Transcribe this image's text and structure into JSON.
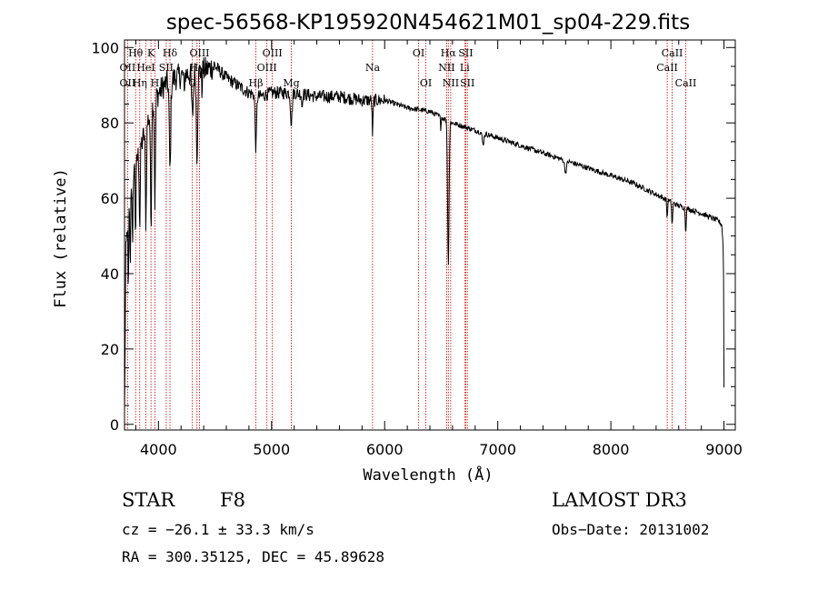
{
  "chart_data": {
    "type": "line",
    "title": "spec-56568-KP195920N454621M01_sp04-229.fits",
    "xlabel": "Wavelength (Å)",
    "ylabel": "Flux (relative)",
    "xlim": [
      3700,
      9100
    ],
    "ylim": [
      -1.5,
      102
    ],
    "xticks": [
      4000,
      5000,
      6000,
      7000,
      8000,
      9000
    ],
    "yticks": [
      0,
      20,
      40,
      60,
      80,
      100
    ],
    "continuum": [
      [
        3700,
        2
      ],
      [
        3712,
        45
      ],
      [
        3740,
        62
      ],
      [
        3780,
        68
      ],
      [
        3830,
        72
      ],
      [
        3900,
        80
      ],
      [
        3960,
        86
      ],
      [
        4050,
        90
      ],
      [
        4150,
        92
      ],
      [
        4250,
        93
      ],
      [
        4400,
        94
      ],
      [
        4500,
        95
      ],
      [
        4600,
        92
      ],
      [
        4700,
        90
      ],
      [
        4800,
        88
      ],
      [
        4900,
        87
      ],
      [
        5000,
        88
      ],
      [
        5200,
        88
      ],
      [
        5400,
        87
      ],
      [
        5600,
        87
      ],
      [
        5800,
        86
      ],
      [
        5900,
        86
      ],
      [
        6000,
        86
      ],
      [
        6200,
        84
      ],
      [
        6400,
        83
      ],
      [
        6600,
        80
      ],
      [
        6800,
        78
      ],
      [
        7000,
        76
      ],
      [
        7200,
        74
      ],
      [
        7400,
        72
      ],
      [
        7600,
        70
      ],
      [
        7800,
        68
      ],
      [
        8000,
        66
      ],
      [
        8200,
        64
      ],
      [
        8400,
        61
      ],
      [
        8600,
        58
      ],
      [
        8800,
        56
      ],
      [
        8950,
        54
      ],
      [
        8980,
        53
      ],
      [
        8995,
        46
      ],
      [
        9000,
        10
      ]
    ],
    "absorption_features": [
      {
        "x": 3734,
        "depth": 25,
        "width": 5
      },
      {
        "x": 3750,
        "depth": 22,
        "width": 5
      },
      {
        "x": 3771,
        "depth": 22,
        "width": 5
      },
      {
        "x": 3798,
        "depth": 18,
        "width": 6
      },
      {
        "x": 3835,
        "depth": 20,
        "width": 6
      },
      {
        "x": 3889,
        "depth": 25,
        "width": 7
      },
      {
        "x": 3934,
        "depth": 30,
        "width": 7
      },
      {
        "x": 3969,
        "depth": 28,
        "width": 7
      },
      {
        "x": 4102,
        "depth": 24,
        "width": 9
      },
      {
        "x": 4227,
        "depth": 6,
        "width": 4
      },
      {
        "x": 4300,
        "depth": 12,
        "width": 10
      },
      {
        "x": 4341,
        "depth": 22,
        "width": 9
      },
      {
        "x": 4384,
        "depth": 6,
        "width": 4
      },
      {
        "x": 4861,
        "depth": 14,
        "width": 9
      },
      {
        "x": 5175,
        "depth": 8,
        "width": 10
      },
      {
        "x": 5270,
        "depth": 4,
        "width": 4
      },
      {
        "x": 5893,
        "depth": 9,
        "width": 6
      },
      {
        "x": 6563,
        "depth": 38,
        "width": 9
      },
      {
        "x": 6496,
        "depth": 3,
        "width": 4
      },
      {
        "x": 8498,
        "depth": 5,
        "width": 5
      },
      {
        "x": 8542,
        "depth": 6,
        "width": 6
      },
      {
        "x": 8662,
        "depth": 6,
        "width": 6
      },
      {
        "x": 6870,
        "depth": 3,
        "width": 10
      },
      {
        "x": 7600,
        "depth": 3,
        "width": 12
      }
    ],
    "spectral_lines": [
      {
        "label": "Hθ",
        "x": 3798,
        "row": 0
      },
      {
        "label": "OII",
        "x": 3727,
        "row": 1
      },
      {
        "label": "OII",
        "x": 3727,
        "row": 2
      },
      {
        "label": "K",
        "x": 3934,
        "row": 0
      },
      {
        "label": "HeI",
        "x": 3889,
        "row": 1
      },
      {
        "label": "Hη",
        "x": 3835,
        "row": 2
      },
      {
        "label": "H",
        "x": 3969,
        "row": 2
      },
      {
        "label": "Hδ",
        "x": 4102,
        "row": 0
      },
      {
        "label": "SII",
        "x": 4069,
        "row": 1
      },
      {
        "label": "OIII",
        "x": 4363,
        "row": 0
      },
      {
        "label": "Hγ",
        "x": 4341,
        "row": 1
      },
      {
        "label": "G",
        "x": 4300,
        "row": 2
      },
      {
        "label": "OIII",
        "x": 5007,
        "row": 0
      },
      {
        "label": "OIII",
        "x": 4959,
        "row": 1
      },
      {
        "label": "Hβ",
        "x": 4861,
        "row": 2
      },
      {
        "label": "Mg",
        "x": 5175,
        "row": 2
      },
      {
        "label": "Na",
        "x": 5893,
        "row": 1
      },
      {
        "label": "OI",
        "x": 6300,
        "row": 0
      },
      {
        "label": "OI",
        "x": 6364,
        "row": 2
      },
      {
        "label": "Hα",
        "x": 6563,
        "row": 0
      },
      {
        "label": "SII",
        "x": 6717,
        "row": 0
      },
      {
        "label": "NII",
        "x": 6548,
        "row": 1
      },
      {
        "label": "Li",
        "x": 6708,
        "row": 1
      },
      {
        "label": "NII",
        "x": 6584,
        "row": 2
      },
      {
        "label": "SII",
        "x": 6731,
        "row": 2
      },
      {
        "label": "CaII",
        "x": 8542,
        "row": 0
      },
      {
        "label": "CaII",
        "x": 8498,
        "row": 1
      },
      {
        "label": "CaII",
        "x": 8662,
        "row": 2
      }
    ]
  },
  "info": {
    "object_type": "STAR",
    "subclass": "F8",
    "survey": "LAMOST DR3",
    "redshift": "cz = −26.1 ± 33.3 km/s",
    "obs_date": "Obs−Date: 20131002",
    "coords": "RA = 300.35125, DEC =  45.89628"
  },
  "colors": {
    "spectrum": "#000000",
    "line_marker": "#c00000",
    "axes": "#000000"
  }
}
